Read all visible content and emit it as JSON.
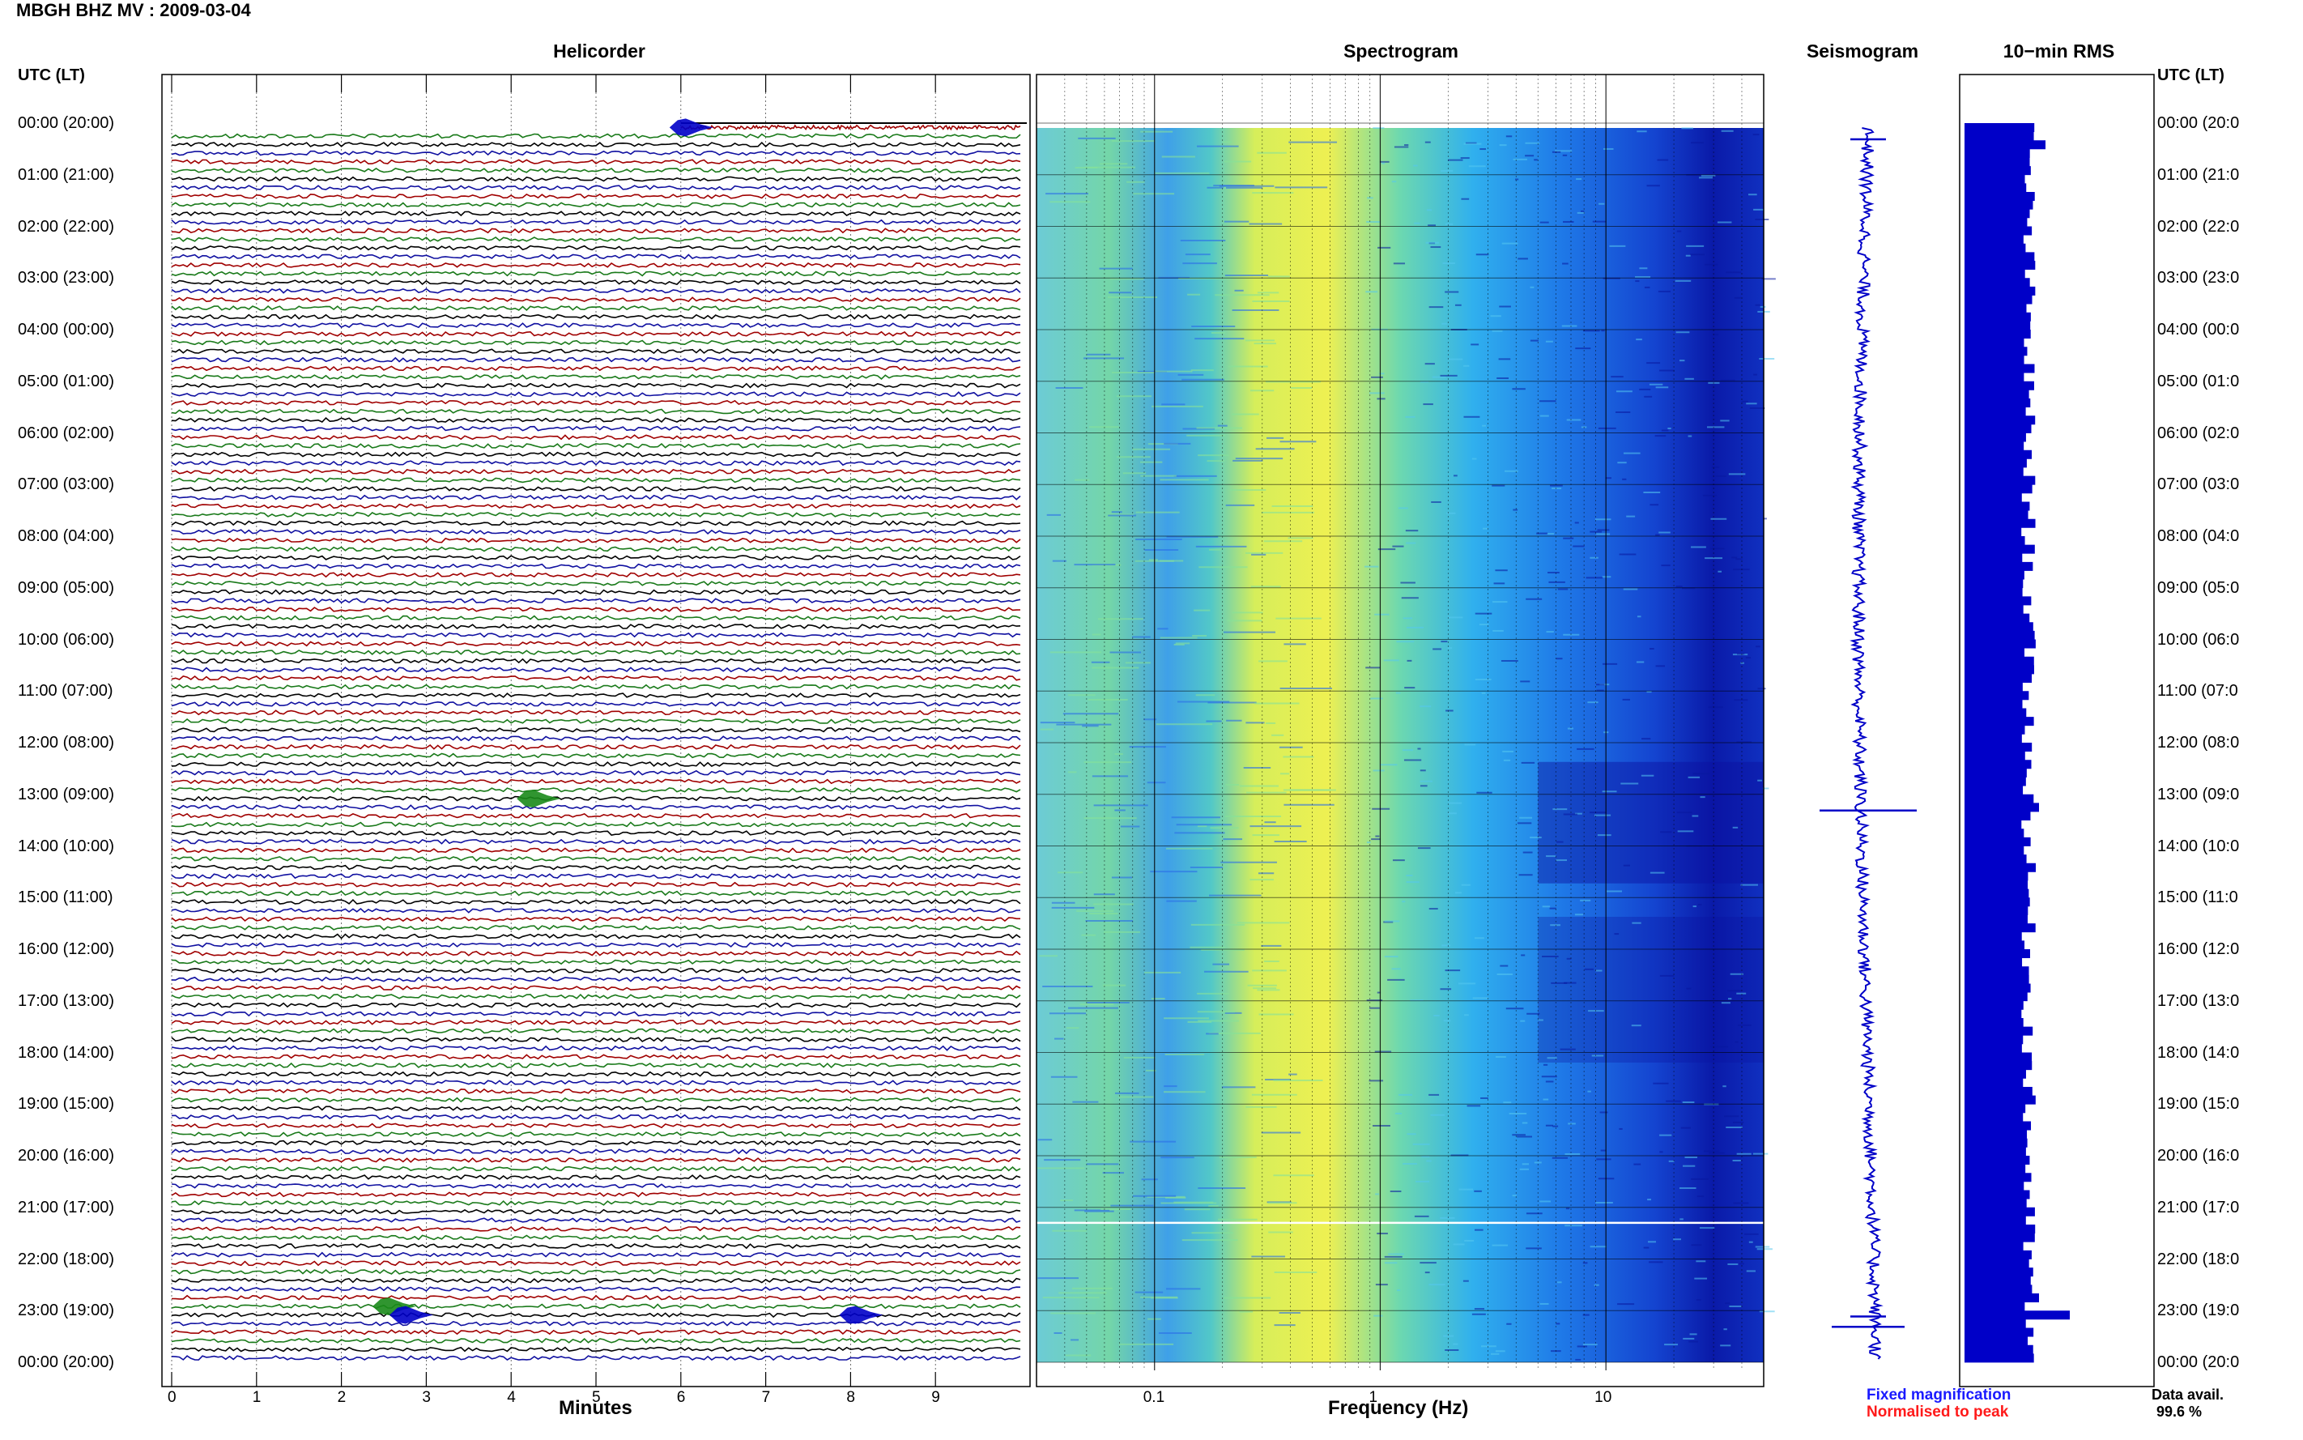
{
  "title": "MBGH BHZ MV : 2009-03-04",
  "panels": {
    "helicorder": "Helicorder",
    "spectrogram": "Spectrogram",
    "seismogram": "Seismogram",
    "rms": "10−min RMS"
  },
  "time_header_left": "UTC (LT)",
  "time_header_right": "UTC (LT)",
  "time_labels_left": [
    "00:00 (20:00)",
    "01:00 (21:00)",
    "02:00 (22:00)",
    "03:00 (23:00)",
    "04:00 (00:00)",
    "05:00 (01:00)",
    "06:00 (02:00)",
    "07:00 (03:00)",
    "08:00 (04:00)",
    "09:00 (05:00)",
    "10:00 (06:00)",
    "11:00 (07:00)",
    "12:00 (08:00)",
    "13:00 (09:00)",
    "14:00 (10:00)",
    "15:00 (11:00)",
    "16:00 (12:00)",
    "17:00 (13:00)",
    "18:00 (14:00)",
    "19:00 (15:00)",
    "20:00 (16:00)",
    "21:00 (17:00)",
    "22:00 (18:00)",
    "23:00 (19:00)",
    "00:00 (20:00)"
  ],
  "time_labels_right": [
    "00:00 (20:0",
    "01:00 (21:0",
    "02:00 (22:0",
    "03:00 (23:0",
    "04:00 (00:0",
    "05:00 (01:0",
    "06:00 (02:0",
    "07:00 (03:0",
    "08:00 (04:0",
    "09:00 (05:0",
    "10:00 (06:0",
    "11:00 (07:0",
    "12:00 (08:0",
    "13:00 (09:0",
    "14:00 (10:0",
    "15:00 (11:0",
    "16:00 (12:0",
    "17:00 (13:0",
    "18:00 (14:0",
    "19:00 (15:0",
    "20:00 (16:0",
    "21:00 (17:0",
    "22:00 (18:0",
    "23:00 (19:0",
    "00:00 (20:0"
  ],
  "footer": {
    "fixed_magnification": "Fixed magnification",
    "normalised_to_peak": "Normalised to peak",
    "data_avail_label": "Data avail.",
    "data_avail_value": "99.6 %"
  },
  "colors": {
    "trace_cycle": [
      "#a00000",
      "#1a7a1a",
      "#000000",
      "#1010a0"
    ],
    "event_fill": "#0000c8",
    "fixed_magnification": "#1a1aff",
    "normalised_to_peak": "#ff1a1a",
    "spectrogram_colormap": [
      "#67c7d8",
      "#7fe07a",
      "#f0f04a",
      "#4ad0e0",
      "#3090f0",
      "#0a0ab0"
    ]
  },
  "chart_data": [
    {
      "type": "line",
      "name": "helicorder",
      "title": "Helicorder",
      "xlabel": "Minutes",
      "ylabel": "UTC (LT)",
      "x_ticks": [
        0,
        1,
        2,
        3,
        4,
        5,
        6,
        7,
        8,
        9
      ],
      "xlim": [
        0,
        10
      ],
      "rows_per_hour": 6,
      "hours": 24,
      "data_start_minute_first_row": 6,
      "events": [
        {
          "hour": 0,
          "row": 0,
          "minute": 6.0,
          "color": "blue"
        },
        {
          "hour": 13,
          "row": 0,
          "minute": 4.2,
          "color": "green"
        },
        {
          "hour": 22,
          "row": 5,
          "minute": 2.5,
          "color": "green"
        },
        {
          "hour": 23,
          "row": 0,
          "minute": 2.7,
          "color": "blue"
        },
        {
          "hour": 23,
          "row": 0,
          "minute": 8.0,
          "color": "blue"
        }
      ]
    },
    {
      "type": "heatmap",
      "name": "spectrogram",
      "title": "Spectrogram",
      "xlabel": "Frequency (Hz)",
      "x_scale": "log",
      "x_ticks": [
        0.1,
        1,
        10
      ],
      "xlim": [
        0.03,
        50
      ],
      "ylabel": "UTC (LT)",
      "peak_band_hz": [
        0.3,
        0.6
      ]
    },
    {
      "type": "line",
      "name": "seismogram",
      "title": "Seismogram",
      "spikes_at_hours": [
        0,
        13,
        22.8,
        23
      ]
    },
    {
      "type": "bar",
      "name": "rms",
      "title": "10−min RMS",
      "orientation": "horizontal",
      "bins_per_hour": 6,
      "peak_hours": [
        0.3,
        13.2,
        22.7,
        23.0
      ]
    }
  ]
}
